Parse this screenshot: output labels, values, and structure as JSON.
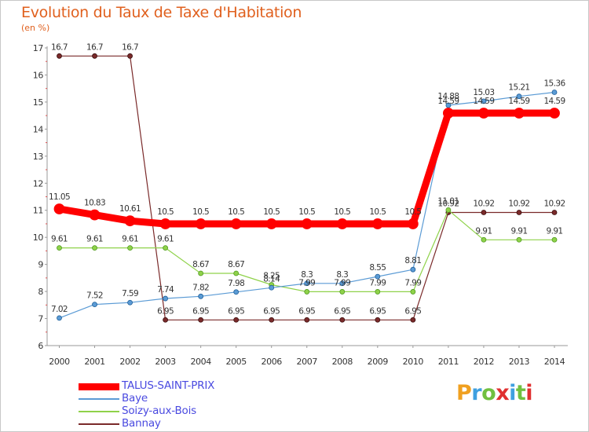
{
  "title": "Evolution du Taux de Taxe d'Habitation",
  "subtitle": "(en %)",
  "brand": {
    "letters": [
      "P",
      "r",
      "o",
      "x",
      "i",
      "t",
      "i"
    ],
    "colors": [
      "#f0a020",
      "#3fa0e0",
      "#70c040",
      "#e03030",
      "#3fa0e0",
      "#70c040",
      "#e03030"
    ]
  },
  "chart_data": {
    "type": "line",
    "title": "Evolution du Taux de Taxe d'Habitation",
    "ylabel": "(en %)",
    "x": [
      "2000",
      "2001",
      "2002",
      "2003",
      "2004",
      "2005",
      "2006",
      "2007",
      "2008",
      "2009",
      "2010",
      "2011",
      "2012",
      "2013",
      "2014"
    ],
    "ylim": [
      6,
      17
    ],
    "yticks": [
      "6",
      "7",
      "8",
      "9",
      "10",
      "11",
      "12",
      "13",
      "14",
      "15",
      "16",
      "17"
    ],
    "grid": false,
    "legend_position": "bottom-left",
    "series": [
      {
        "name": "TALUS-SAINT-PRIX",
        "color": "#ff0000",
        "values": [
          11.05,
          10.83,
          10.61,
          10.5,
          10.5,
          10.5,
          10.5,
          10.5,
          10.5,
          10.5,
          10.5,
          14.59,
          14.59,
          14.59,
          14.59
        ],
        "labels": [
          "11.05",
          "10.83",
          "10.61",
          "10.5",
          "10.5",
          "10.5",
          "10.5",
          "10.5",
          "10.5",
          "10.5",
          "10.5",
          "14.59",
          "14.59",
          "14.59",
          "14.59"
        ]
      },
      {
        "name": "Baye",
        "color": "#5b9bd5",
        "values": [
          7.02,
          7.52,
          7.59,
          7.74,
          7.82,
          7.98,
          8.14,
          8.3,
          8.3,
          8.55,
          8.81,
          14.88,
          15.03,
          15.21,
          15.36
        ],
        "labels": [
          "7.02",
          "7.52",
          "7.59",
          "7.74",
          "7.82",
          "7.98",
          "8.14",
          "8.3",
          "8.3",
          "8.55",
          "8.81",
          "14.88",
          "15.03",
          "15.21",
          "15.36"
        ]
      },
      {
        "name": "Soizy-aux-Bois",
        "color": "#8fd24a",
        "values": [
          9.61,
          9.61,
          9.61,
          9.61,
          8.67,
          8.67,
          8.25,
          7.99,
          7.99,
          7.99,
          7.99,
          11.01,
          9.91,
          9.91,
          9.91
        ],
        "labels": [
          "9.61",
          "9.61",
          "9.61",
          "9.61",
          "8.67",
          "8.67",
          "8.25",
          "7.99",
          "7.99",
          "7.99",
          "7.99",
          "11.01",
          "9.91",
          "9.91",
          "9.91"
        ]
      },
      {
        "name": "Bannay",
        "color": "#7a2a2a",
        "values": [
          16.7,
          16.7,
          16.7,
          6.95,
          6.95,
          6.95,
          6.95,
          6.95,
          6.95,
          6.95,
          6.95,
          10.92,
          10.92,
          10.92,
          10.92
        ],
        "labels": [
          "16.7",
          "16.7",
          "16.7",
          "6.95",
          "6.95",
          "6.95",
          "6.95",
          "6.95",
          "6.95",
          "6.95",
          "6.95",
          "10.92",
          "10.92",
          "10.92",
          "10.92"
        ]
      }
    ]
  }
}
